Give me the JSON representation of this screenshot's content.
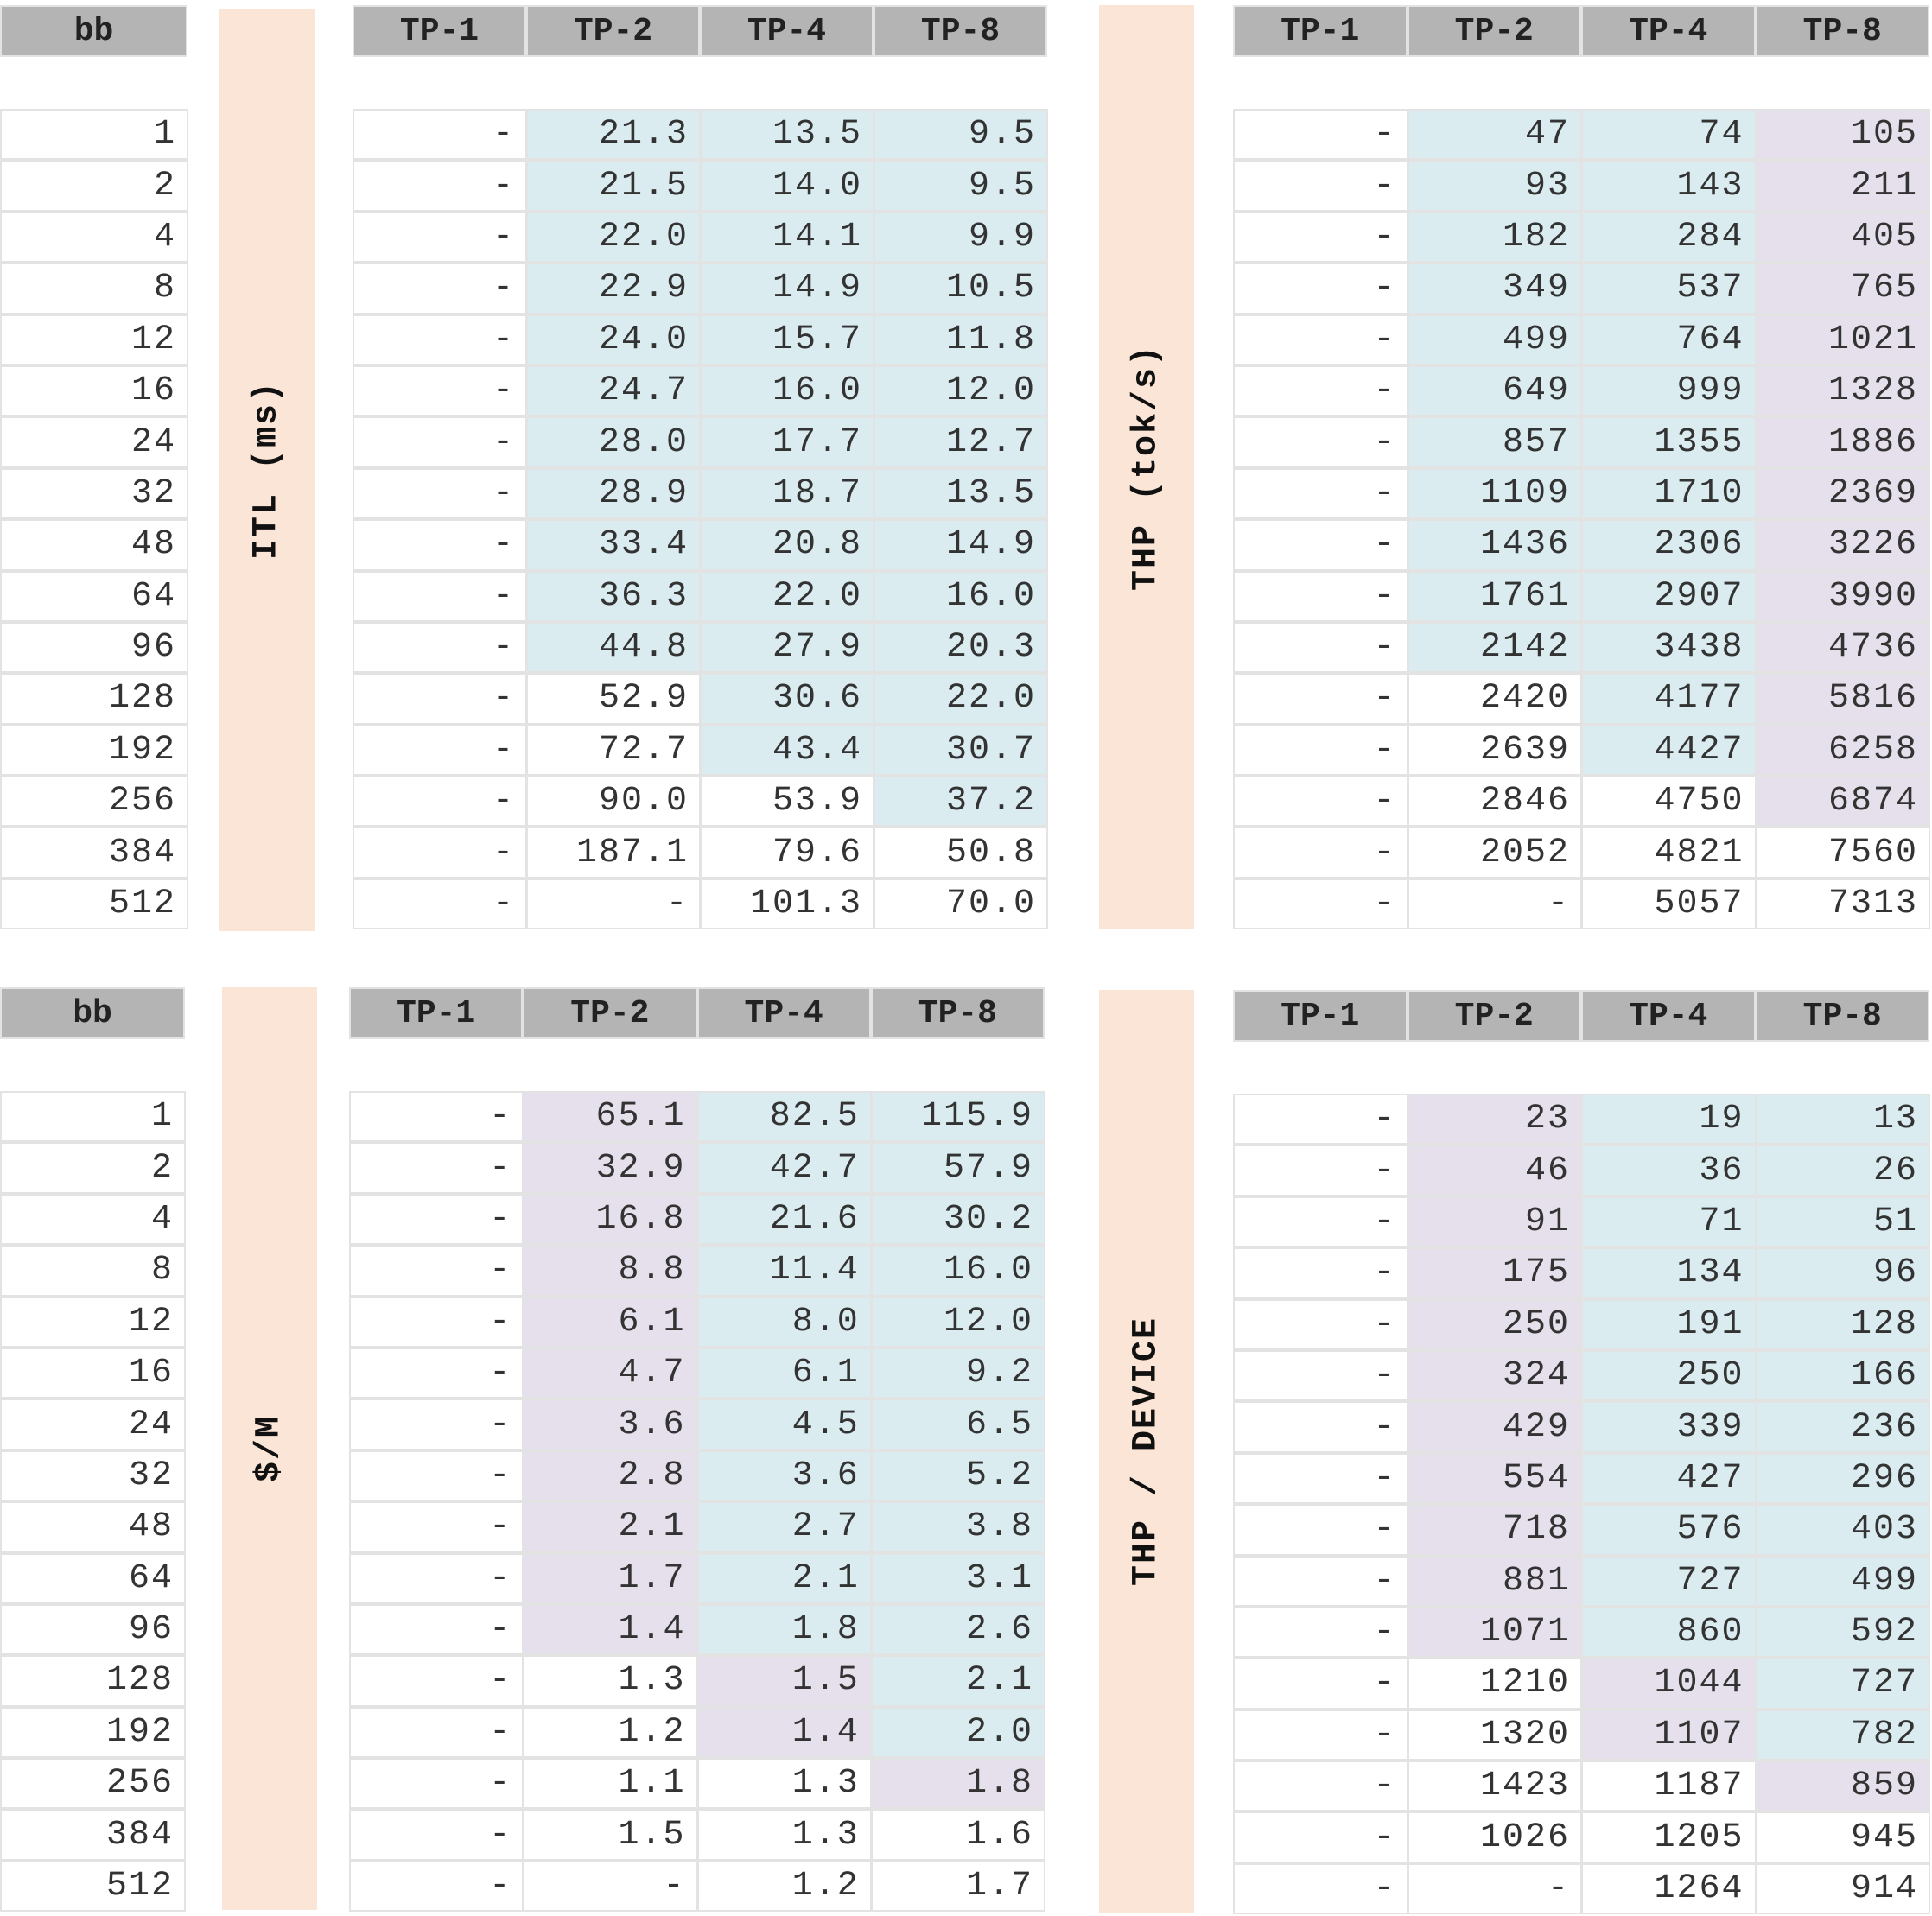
{
  "colors": {
    "header_bg": "#b4b4b4",
    "label_bg": "#fbe5d6",
    "highlight_blue": "#daecf0",
    "highlight_purple": "#e5e0eb",
    "border": "#e3e3e3"
  },
  "bb_header": "bb",
  "tp_headers": [
    "TP-1",
    "TP-2",
    "TP-4",
    "TP-8"
  ],
  "bb_values": [
    "1",
    "2",
    "4",
    "8",
    "12",
    "16",
    "24",
    "32",
    "48",
    "64",
    "96",
    "128",
    "192",
    "256",
    "384",
    "512"
  ],
  "tables": [
    {
      "label": "ITL (ms)",
      "rows": [
        [
          "-",
          "21.3",
          "13.5",
          "9.5"
        ],
        [
          "-",
          "21.5",
          "14.0",
          "9.5"
        ],
        [
          "-",
          "22.0",
          "14.1",
          "9.9"
        ],
        [
          "-",
          "22.9",
          "14.9",
          "10.5"
        ],
        [
          "-",
          "24.0",
          "15.7",
          "11.8"
        ],
        [
          "-",
          "24.7",
          "16.0",
          "12.0"
        ],
        [
          "-",
          "28.0",
          "17.7",
          "12.7"
        ],
        [
          "-",
          "28.9",
          "18.7",
          "13.5"
        ],
        [
          "-",
          "33.4",
          "20.8",
          "14.9"
        ],
        [
          "-",
          "36.3",
          "22.0",
          "16.0"
        ],
        [
          "-",
          "44.8",
          "27.9",
          "20.3"
        ],
        [
          "-",
          "52.9",
          "30.6",
          "22.0"
        ],
        [
          "-",
          "72.7",
          "43.4",
          "30.7"
        ],
        [
          "-",
          "90.0",
          "53.9",
          "37.2"
        ],
        [
          "-",
          "187.1",
          "79.6",
          "50.8"
        ],
        [
          "-",
          "-",
          "101.3",
          "70.0"
        ]
      ],
      "highlight": [
        [
          "",
          "b",
          "b",
          "b"
        ],
        [
          "",
          "b",
          "b",
          "b"
        ],
        [
          "",
          "b",
          "b",
          "b"
        ],
        [
          "",
          "b",
          "b",
          "b"
        ],
        [
          "",
          "b",
          "b",
          "b"
        ],
        [
          "",
          "b",
          "b",
          "b"
        ],
        [
          "",
          "b",
          "b",
          "b"
        ],
        [
          "",
          "b",
          "b",
          "b"
        ],
        [
          "",
          "b",
          "b",
          "b"
        ],
        [
          "",
          "b",
          "b",
          "b"
        ],
        [
          "",
          "b",
          "b",
          "b"
        ],
        [
          "",
          "",
          "b",
          "b"
        ],
        [
          "",
          "",
          "b",
          "b"
        ],
        [
          "",
          "",
          "",
          "b"
        ],
        [
          "",
          "",
          "",
          ""
        ],
        [
          "",
          "",
          "",
          ""
        ]
      ]
    },
    {
      "label": "THP (tok/s)",
      "rows": [
        [
          "-",
          "47",
          "74",
          "105"
        ],
        [
          "-",
          "93",
          "143",
          "211"
        ],
        [
          "-",
          "182",
          "284",
          "405"
        ],
        [
          "-",
          "349",
          "537",
          "765"
        ],
        [
          "-",
          "499",
          "764",
          "1021"
        ],
        [
          "-",
          "649",
          "999",
          "1328"
        ],
        [
          "-",
          "857",
          "1355",
          "1886"
        ],
        [
          "-",
          "1109",
          "1710",
          "2369"
        ],
        [
          "-",
          "1436",
          "2306",
          "3226"
        ],
        [
          "-",
          "1761",
          "2907",
          "3990"
        ],
        [
          "-",
          "2142",
          "3438",
          "4736"
        ],
        [
          "-",
          "2420",
          "4177",
          "5816"
        ],
        [
          "-",
          "2639",
          "4427",
          "6258"
        ],
        [
          "-",
          "2846",
          "4750",
          "6874"
        ],
        [
          "-",
          "2052",
          "4821",
          "7560"
        ],
        [
          "-",
          "-",
          "5057",
          "7313"
        ]
      ],
      "highlight": [
        [
          "",
          "b",
          "b",
          "p"
        ],
        [
          "",
          "b",
          "b",
          "p"
        ],
        [
          "",
          "b",
          "b",
          "p"
        ],
        [
          "",
          "b",
          "b",
          "p"
        ],
        [
          "",
          "b",
          "b",
          "p"
        ],
        [
          "",
          "b",
          "b",
          "p"
        ],
        [
          "",
          "b",
          "b",
          "p"
        ],
        [
          "",
          "b",
          "b",
          "p"
        ],
        [
          "",
          "b",
          "b",
          "p"
        ],
        [
          "",
          "b",
          "b",
          "p"
        ],
        [
          "",
          "b",
          "b",
          "p"
        ],
        [
          "",
          "",
          "b",
          "p"
        ],
        [
          "",
          "",
          "b",
          "p"
        ],
        [
          "",
          "",
          "",
          "p"
        ],
        [
          "",
          "",
          "",
          ""
        ],
        [
          "",
          "",
          "",
          ""
        ]
      ]
    },
    {
      "label": "$/M",
      "rows": [
        [
          "-",
          "65.1",
          "82.5",
          "115.9"
        ],
        [
          "-",
          "32.9",
          "42.7",
          "57.9"
        ],
        [
          "-",
          "16.8",
          "21.6",
          "30.2"
        ],
        [
          "-",
          "8.8",
          "11.4",
          "16.0"
        ],
        [
          "-",
          "6.1",
          "8.0",
          "12.0"
        ],
        [
          "-",
          "4.7",
          "6.1",
          "9.2"
        ],
        [
          "-",
          "3.6",
          "4.5",
          "6.5"
        ],
        [
          "-",
          "2.8",
          "3.6",
          "5.2"
        ],
        [
          "-",
          "2.1",
          "2.7",
          "3.8"
        ],
        [
          "-",
          "1.7",
          "2.1",
          "3.1"
        ],
        [
          "-",
          "1.4",
          "1.8",
          "2.6"
        ],
        [
          "-",
          "1.3",
          "1.5",
          "2.1"
        ],
        [
          "-",
          "1.2",
          "1.4",
          "2.0"
        ],
        [
          "-",
          "1.1",
          "1.3",
          "1.8"
        ],
        [
          "-",
          "1.5",
          "1.3",
          "1.6"
        ],
        [
          "-",
          "-",
          "1.2",
          "1.7"
        ]
      ],
      "highlight": [
        [
          "",
          "p",
          "b",
          "b"
        ],
        [
          "",
          "p",
          "b",
          "b"
        ],
        [
          "",
          "p",
          "b",
          "b"
        ],
        [
          "",
          "p",
          "b",
          "b"
        ],
        [
          "",
          "p",
          "b",
          "b"
        ],
        [
          "",
          "p",
          "b",
          "b"
        ],
        [
          "",
          "p",
          "b",
          "b"
        ],
        [
          "",
          "p",
          "b",
          "b"
        ],
        [
          "",
          "p",
          "b",
          "b"
        ],
        [
          "",
          "p",
          "b",
          "b"
        ],
        [
          "",
          "p",
          "b",
          "b"
        ],
        [
          "",
          "",
          "p",
          "b"
        ],
        [
          "",
          "",
          "p",
          "b"
        ],
        [
          "",
          "",
          "",
          "p"
        ],
        [
          "",
          "",
          "",
          ""
        ],
        [
          "",
          "",
          "",
          ""
        ]
      ]
    },
    {
      "label": "THP / DEVICE",
      "rows": [
        [
          "-",
          "23",
          "19",
          "13"
        ],
        [
          "-",
          "46",
          "36",
          "26"
        ],
        [
          "-",
          "91",
          "71",
          "51"
        ],
        [
          "-",
          "175",
          "134",
          "96"
        ],
        [
          "-",
          "250",
          "191",
          "128"
        ],
        [
          "-",
          "324",
          "250",
          "166"
        ],
        [
          "-",
          "429",
          "339",
          "236"
        ],
        [
          "-",
          "554",
          "427",
          "296"
        ],
        [
          "-",
          "718",
          "576",
          "403"
        ],
        [
          "-",
          "881",
          "727",
          "499"
        ],
        [
          "-",
          "1071",
          "860",
          "592"
        ],
        [
          "-",
          "1210",
          "1044",
          "727"
        ],
        [
          "-",
          "1320",
          "1107",
          "782"
        ],
        [
          "-",
          "1423",
          "1187",
          "859"
        ],
        [
          "-",
          "1026",
          "1205",
          "945"
        ],
        [
          "-",
          "-",
          "1264",
          "914"
        ]
      ],
      "highlight": [
        [
          "",
          "p",
          "b",
          "b"
        ],
        [
          "",
          "p",
          "b",
          "b"
        ],
        [
          "",
          "p",
          "b",
          "b"
        ],
        [
          "",
          "p",
          "b",
          "b"
        ],
        [
          "",
          "p",
          "b",
          "b"
        ],
        [
          "",
          "p",
          "b",
          "b"
        ],
        [
          "",
          "p",
          "b",
          "b"
        ],
        [
          "",
          "p",
          "b",
          "b"
        ],
        [
          "",
          "p",
          "b",
          "b"
        ],
        [
          "",
          "p",
          "b",
          "b"
        ],
        [
          "",
          "p",
          "b",
          "b"
        ],
        [
          "",
          "",
          "p",
          "b"
        ],
        [
          "",
          "",
          "p",
          "b"
        ],
        [
          "",
          "",
          "",
          "p"
        ],
        [
          "",
          "",
          "",
          ""
        ],
        [
          "",
          "",
          "",
          ""
        ]
      ]
    }
  ]
}
